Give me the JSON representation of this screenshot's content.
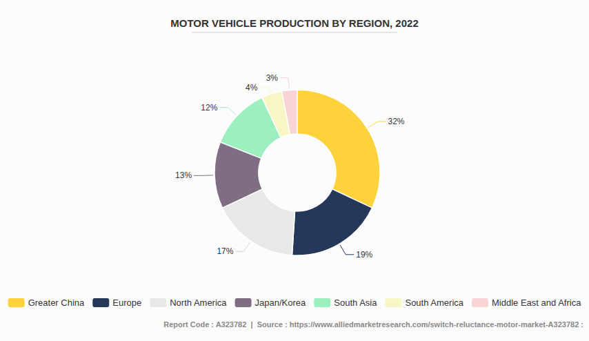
{
  "chart_data": {
    "type": "pie",
    "title": "MOTOR VEHICLE PRODUCTION BY REGION, 2022",
    "categories": [
      "Greater China",
      "Europe",
      "North America",
      "Japan/Korea",
      "South Asia",
      "South America",
      "Middle East and Africa"
    ],
    "values": [
      32,
      19,
      17,
      13,
      12,
      4,
      3
    ],
    "value_labels": [
      "32%",
      "19%",
      "17%",
      "13%",
      "12%",
      "4%",
      "3%"
    ],
    "colors": [
      "#fdd23a",
      "#263859",
      "#e8e8e8",
      "#7f6e83",
      "#9cefbe",
      "#f7f6c5",
      "#f8d4d4"
    ],
    "data_labels": true,
    "legend": "bottom",
    "annotations": [
      "Report Code : A323782  |  Source : https://www.alliedmarketresearch.com/switch-reluctance-motor-market-A323782 :"
    ]
  }
}
